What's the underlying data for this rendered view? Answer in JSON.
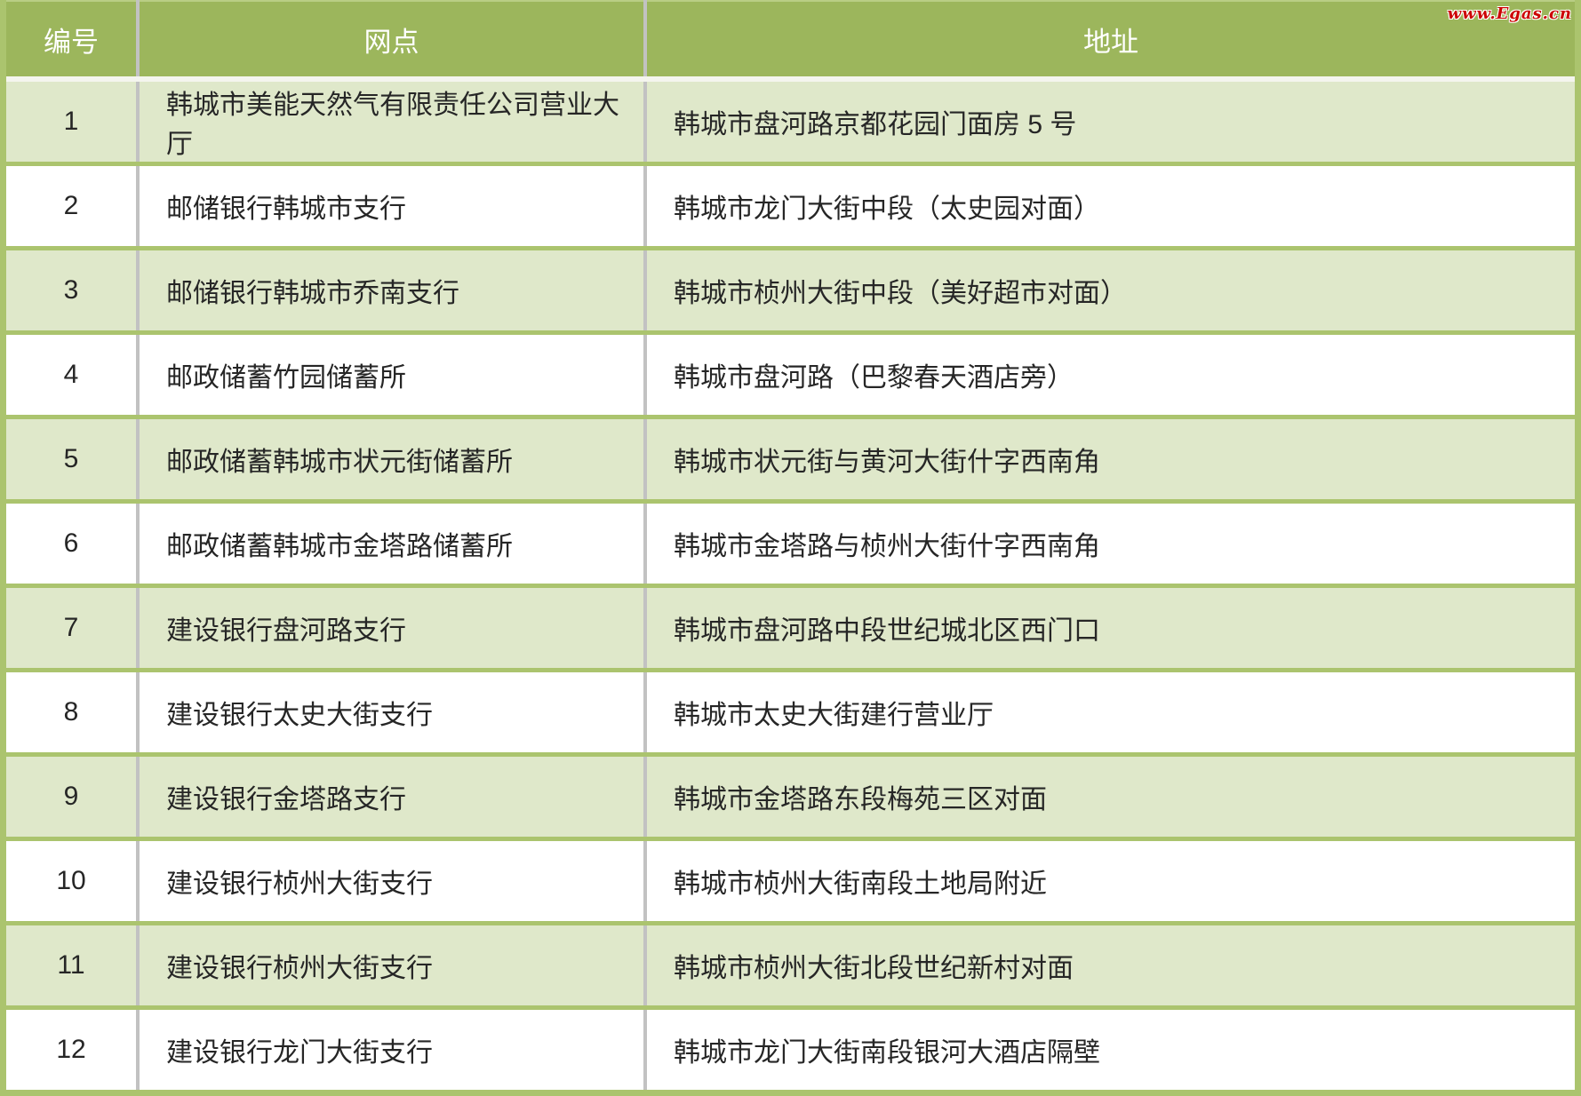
{
  "watermark": "www.Egas.cn",
  "colors": {
    "header_bg": "#9cb65c",
    "header_text": "#ffffff",
    "row_alt_bg": "#dfe8ca",
    "row_bg": "#ffffff",
    "row_divider_green": "#abc46e",
    "column_divider_gray": "#c2c2c2",
    "body_text": "#262626",
    "watermark_red": "#cc0000"
  },
  "table": {
    "headers": {
      "number": "编号",
      "branch": "网点",
      "address": "地址"
    },
    "rows": [
      {
        "no": "1",
        "branch": "韩城市美能天然气有限责任公司营业大厅",
        "address": "韩城市盘河路京都花园门面房 5 号"
      },
      {
        "no": "2",
        "branch": "邮储银行韩城市支行",
        "address": "韩城市龙门大街中段（太史园对面）"
      },
      {
        "no": "3",
        "branch": "邮储银行韩城市乔南支行",
        "address": "韩城市桢州大街中段（美好超市对面）"
      },
      {
        "no": "4",
        "branch": "邮政储蓄竹园储蓄所",
        "address": "韩城市盘河路（巴黎春天酒店旁）"
      },
      {
        "no": "5",
        "branch": "邮政储蓄韩城市状元街储蓄所",
        "address": "韩城市状元街与黄河大街什字西南角"
      },
      {
        "no": "6",
        "branch": "邮政储蓄韩城市金塔路储蓄所",
        "address": "韩城市金塔路与桢州大街什字西南角"
      },
      {
        "no": "7",
        "branch": "建设银行盘河路支行",
        "address": "韩城市盘河路中段世纪城北区西门口"
      },
      {
        "no": "8",
        "branch": "建设银行太史大街支行",
        "address": "韩城市太史大街建行营业厅"
      },
      {
        "no": "9",
        "branch": "建设银行金塔路支行",
        "address": "韩城市金塔路东段梅苑三区对面"
      },
      {
        "no": "10",
        "branch": "建设银行桢州大街支行",
        "address": "韩城市桢州大街南段土地局附近"
      },
      {
        "no": "11",
        "branch": "建设银行桢州大街支行",
        "address": "韩城市桢州大街北段世纪新村对面"
      },
      {
        "no": "12",
        "branch": "建设银行龙门大街支行",
        "address": "韩城市龙门大街南段银河大酒店隔壁"
      }
    ]
  }
}
